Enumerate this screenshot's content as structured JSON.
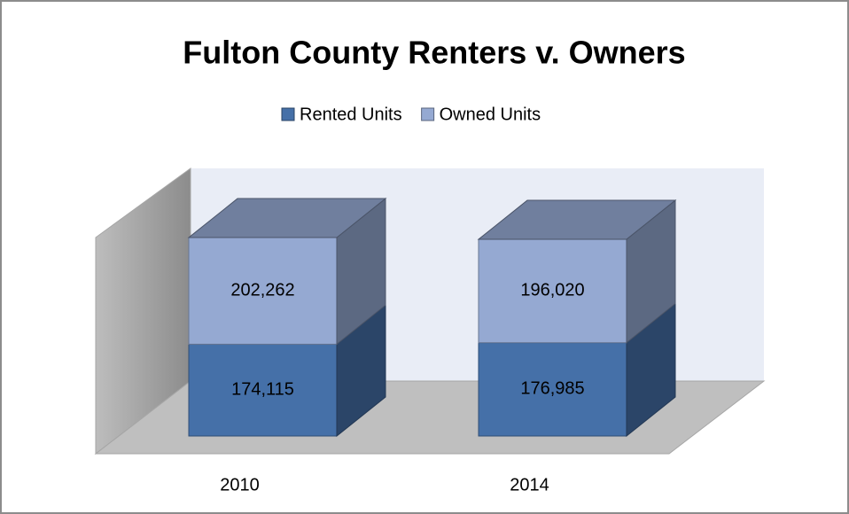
{
  "chart_data": {
    "type": "bar",
    "stacked": true,
    "title": "Fulton County Renters v. Owners",
    "categories": [
      "2010",
      "2014"
    ],
    "series": [
      {
        "name": "Rented Units",
        "color": "#4570a8",
        "values": [
          174115,
          176985
        ],
        "value_labels": [
          "174,115",
          "176,985"
        ]
      },
      {
        "name": "Owned Units",
        "color": "#95a9d2",
        "values": [
          202262,
          196020
        ],
        "value_labels": [
          "202,262",
          "196,020"
        ]
      }
    ],
    "ylim": [
      0,
      400000
    ],
    "legend": "top"
  }
}
